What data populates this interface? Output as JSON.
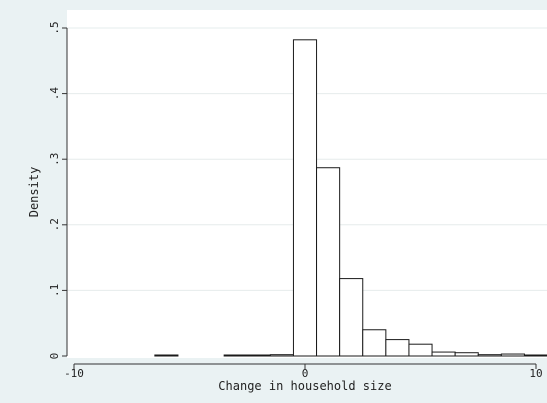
{
  "chart_data": {
    "type": "bar",
    "subtype": "histogram",
    "xlabel": "Change in household size",
    "ylabel": "Density",
    "xlim": [
      -10.7,
      10.6
    ],
    "ylim": [
      0,
      0.51
    ],
    "x_ticks": [
      -10,
      0,
      10
    ],
    "x_tick_labels": [
      "-10",
      "0",
      "10"
    ],
    "y_ticks": [
      0,
      0.1,
      0.2,
      0.3,
      0.4,
      0.5
    ],
    "y_tick_labels": [
      "0",
      ".1",
      ".2",
      ".3",
      ".4",
      ".5"
    ],
    "grid": true,
    "bin_width": 1,
    "bins": [
      {
        "x0": -6.5,
        "x1": -5.5,
        "value": 0.001
      },
      {
        "x0": -3.5,
        "x1": -2.5,
        "value": 0.001
      },
      {
        "x0": -2.5,
        "x1": -1.5,
        "value": 0.001
      },
      {
        "x0": -1.5,
        "x1": -0.5,
        "value": 0.002
      },
      {
        "x0": -0.5,
        "x1": 0.5,
        "value": 0.482
      },
      {
        "x0": 0.5,
        "x1": 1.5,
        "value": 0.287
      },
      {
        "x0": 1.5,
        "x1": 2.5,
        "value": 0.118
      },
      {
        "x0": 2.5,
        "x1": 3.5,
        "value": 0.04
      },
      {
        "x0": 3.5,
        "x1": 4.5,
        "value": 0.025
      },
      {
        "x0": 4.5,
        "x1": 5.5,
        "value": 0.018
      },
      {
        "x0": 5.5,
        "x1": 6.5,
        "value": 0.006
      },
      {
        "x0": 6.5,
        "x1": 7.5,
        "value": 0.005
      },
      {
        "x0": 7.5,
        "x1": 8.5,
        "value": 0.002
      },
      {
        "x0": 8.5,
        "x1": 9.5,
        "value": 0.003
      },
      {
        "x0": 9.5,
        "x1": 10.5,
        "value": 0.001
      }
    ]
  }
}
